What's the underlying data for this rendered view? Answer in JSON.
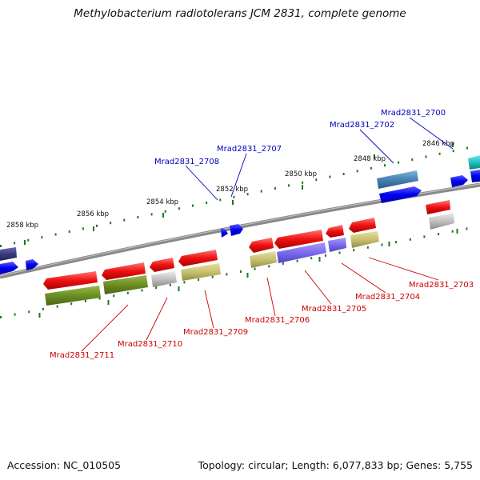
{
  "title": "Methylobacterium radiotolerans JCM 2831, complete genome",
  "footer": {
    "accession": "Accession: NC_010505",
    "topology": "Topology: circular; Length: 6,077,833 bp; Genes: 5,755"
  },
  "colors": {
    "backbone": "#808080",
    "ticks": "#1a7a1a",
    "label_red": "#cc0000",
    "label_blue": "#0000bb",
    "red_gene": "#ee1111",
    "blue_gene": "#0000ee",
    "olive_gene": "#6b8e23",
    "khaki_gene": "#c8c070",
    "grey_gene": "#c0c0c0",
    "slate_gene": "#7b68ee",
    "steel_gene": "#4682b4",
    "cyan_gene": "#20c0c0",
    "navy_gene": "#3a3a80"
  },
  "scale_labels": [
    "2846 kbp",
    "2848 kbp",
    "2850 kbp",
    "2852 kbp",
    "2854 kbp",
    "2856 kbp",
    "2858 kbp"
  ],
  "gene_labels_red": [
    "Mrad2831_2703",
    "Mrad2831_2704",
    "Mrad2831_2705",
    "Mrad2831_2706",
    "Mrad2831_2709",
    "Mrad2831_2710",
    "Mrad2831_2711"
  ],
  "gene_labels_blue": [
    "Mrad2831_2700",
    "Mrad2831_2702",
    "Mrad2831_2707",
    "Mrad2831_2708"
  ]
}
